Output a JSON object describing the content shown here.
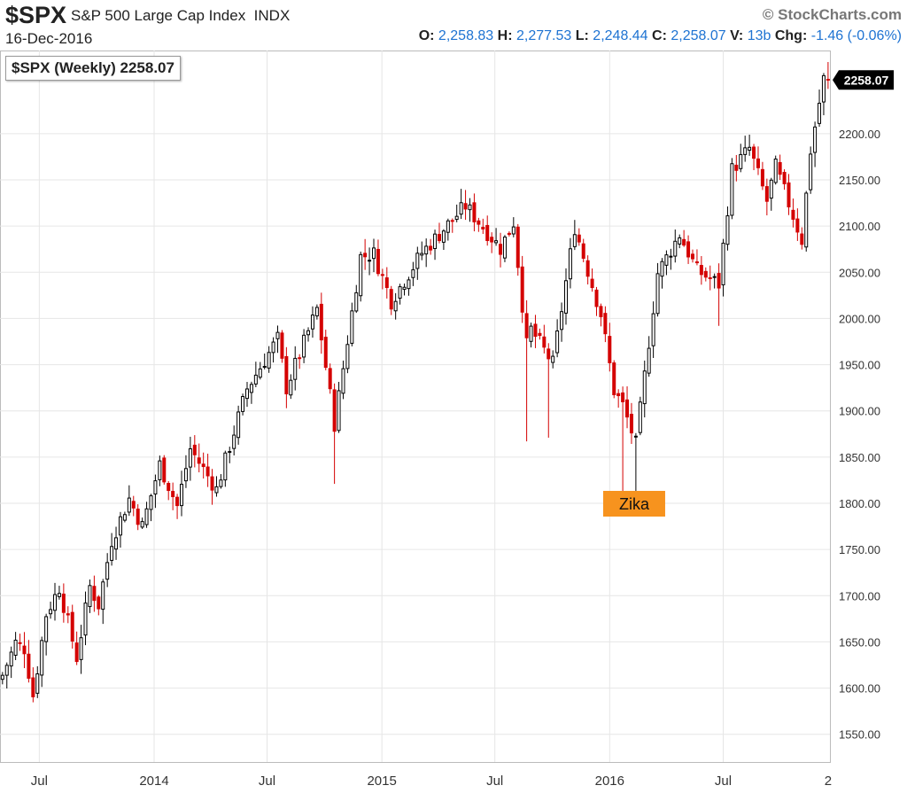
{
  "header": {
    "symbol": "$SPX",
    "name": "S&P 500 Large Cap Index",
    "exchange": "INDX",
    "date": "16-Dec-2016",
    "brand": "StockCharts.com",
    "o_label": "O:",
    "o": "2,258.83",
    "h_label": "H:",
    "h": "2,277.53",
    "l_label": "L:",
    "l": "2,248.44",
    "c_label": "C:",
    "c": "2,258.07",
    "v_label": "V:",
    "v": "13b",
    "chg_label": "Chg:",
    "chg": "-1.46 (-0.06%)"
  },
  "chart_label": "$SPX (Weekly) 2258.07",
  "colors": {
    "up": "#000000",
    "down": "#d40000",
    "accent": "#1e73d2",
    "annotation": "#f7931e",
    "grid": "#e6e6e6"
  },
  "chart_data": {
    "type": "candlestick",
    "title": "$SPX (Weekly) 2258.07",
    "ylim": [
      1520,
      2290
    ],
    "y_ticks": [
      "1550.00",
      "1600.00",
      "1650.00",
      "1700.00",
      "1750.00",
      "1800.00",
      "1850.00",
      "1900.00",
      "1950.00",
      "2000.00",
      "2050.00",
      "2100.00",
      "2150.00",
      "2200.00"
    ],
    "x_ticks": [
      "Jul",
      "2014",
      "Jul",
      "2015",
      "Jul",
      "2016",
      "Jul",
      "2"
    ],
    "last_price": "2258.07",
    "annotation": {
      "text": "Zika",
      "date": "2016-02-05",
      "price": 1800
    },
    "grid": true,
    "close_path": [
      [
        "2013-05-03",
        1614
      ],
      [
        "2013-05-24",
        1649
      ],
      [
        "2013-06-07",
        1643
      ],
      [
        "2013-06-21",
        1592
      ],
      [
        "2013-07-12",
        1680
      ],
      [
        "2013-08-02",
        1709
      ],
      [
        "2013-08-30",
        1633
      ],
      [
        "2013-09-20",
        1710
      ],
      [
        "2013-10-04",
        1690
      ],
      [
        "2013-10-25",
        1760
      ],
      [
        "2013-11-22",
        1805
      ],
      [
        "2013-12-13",
        1775
      ],
      [
        "2014-01-10",
        1842
      ],
      [
        "2014-02-07",
        1797
      ],
      [
        "2014-02-28",
        1859
      ],
      [
        "2014-04-11",
        1815
      ],
      [
        "2014-05-30",
        1924
      ],
      [
        "2014-07-18",
        1978
      ],
      [
        "2014-08-01",
        1925
      ],
      [
        "2014-09-19",
        2010
      ],
      [
        "2014-10-17",
        1886
      ],
      [
        "2014-11-28",
        2067
      ],
      [
        "2014-12-19",
        2070
      ],
      [
        "2015-01-16",
        2019
      ],
      [
        "2015-03-06",
        2071
      ],
      [
        "2015-05-15",
        2122
      ],
      [
        "2015-07-10",
        2076
      ],
      [
        "2015-07-31",
        2104
      ],
      [
        "2015-08-21",
        1971
      ],
      [
        "2015-08-28",
        1988
      ],
      [
        "2015-10-02",
        1951
      ],
      [
        "2015-11-06",
        2099
      ],
      [
        "2015-12-18",
        2005
      ],
      [
        "2016-01-08",
        1922
      ],
      [
        "2016-01-22",
        1906
      ],
      [
        "2016-02-12",
        1864
      ],
      [
        "2016-03-18",
        2049
      ],
      [
        "2016-04-22",
        2091
      ],
      [
        "2016-05-20",
        2052
      ],
      [
        "2016-06-24",
        2037
      ],
      [
        "2016-07-15",
        2161
      ],
      [
        "2016-08-12",
        2184
      ],
      [
        "2016-09-09",
        2127
      ],
      [
        "2016-09-23",
        2164
      ],
      [
        "2016-11-04",
        2085
      ],
      [
        "2016-11-18",
        2182
      ],
      [
        "2016-12-09",
        2259
      ],
      [
        "2016-12-16",
        2258
      ]
    ],
    "big_events": [
      [
        "2014-10-17",
        1821
      ],
      [
        "2015-08-21",
        1867
      ],
      [
        "2015-09-25",
        1871
      ],
      [
        "2016-01-22",
        1812
      ],
      [
        "2016-02-12",
        1810
      ],
      [
        "2016-06-24",
        1992
      ]
    ]
  }
}
